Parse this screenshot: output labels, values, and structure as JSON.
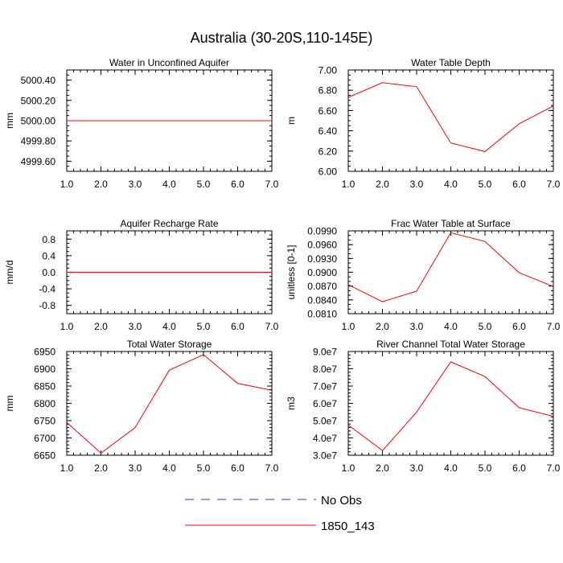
{
  "figure": {
    "title": "Australia (30-20S,110-145E)"
  },
  "legend": {
    "position": "bottom-center",
    "entries": [
      {
        "label": "No Obs",
        "color": "#3232c8",
        "style": "dashed"
      },
      {
        "label": "1850_143",
        "color": "#ff0000",
        "style": "solid"
      }
    ]
  },
  "chart_data": [
    {
      "type": "line",
      "title": "Water in Unconfined Aquifer",
      "ylabel": "mm",
      "xlabel": "",
      "xlim": [
        1,
        7
      ],
      "ylim": [
        4999.5,
        5000.5
      ],
      "xticks": [
        "1.0",
        "2.0",
        "3.0",
        "4.0",
        "5.0",
        "6.0",
        "7.0"
      ],
      "yticks": [
        {
          "v": 4999.6,
          "label": "4999.60"
        },
        {
          "v": 4999.8,
          "label": "4999.80"
        },
        {
          "v": 5000.0,
          "label": "5000.00"
        },
        {
          "v": 5000.2,
          "label": "5000.20"
        },
        {
          "v": 5000.4,
          "label": "5000.40"
        }
      ],
      "minor_y": 0.05,
      "series": [
        {
          "name": "1850_143",
          "color": "#ff0000",
          "x": [
            1,
            2,
            3,
            4,
            5,
            6,
            7
          ],
          "values": [
            5000,
            5000,
            5000,
            5000,
            5000,
            5000,
            5000
          ]
        }
      ]
    },
    {
      "type": "line",
      "title": "Water Table Depth",
      "ylabel": "m",
      "xlabel": "",
      "xlim": [
        1,
        7
      ],
      "ylim": [
        6.0,
        7.0
      ],
      "xticks": [
        "1.0",
        "2.0",
        "3.0",
        "4.0",
        "5.0",
        "6.0",
        "7.0"
      ],
      "yticks": [
        {
          "v": 6.0,
          "label": "6.00"
        },
        {
          "v": 6.2,
          "label": "6.20"
        },
        {
          "v": 6.4,
          "label": "6.40"
        },
        {
          "v": 6.6,
          "label": "6.60"
        },
        {
          "v": 6.8,
          "label": "6.80"
        },
        {
          "v": 7.0,
          "label": "7.00"
        }
      ],
      "minor_y": 0.05,
      "series": [
        {
          "name": "1850_143",
          "color": "#ff0000",
          "x": [
            1,
            2,
            3,
            4,
            5,
            6,
            7
          ],
          "values": [
            6.73,
            6.875,
            6.835,
            6.28,
            6.195,
            6.47,
            6.645
          ]
        }
      ]
    },
    {
      "type": "line",
      "title": "Aquifer Recharge Rate",
      "ylabel": "mm/d",
      "xlabel": "",
      "xlim": [
        1,
        7
      ],
      "ylim": [
        -1.0,
        1.0
      ],
      "xticks": [
        "1.0",
        "2.0",
        "3.0",
        "4.0",
        "5.0",
        "6.0",
        "7.0"
      ],
      "yticks": [
        {
          "v": -0.8,
          "label": "-0.8"
        },
        {
          "v": -0.4,
          "label": "-0.4"
        },
        {
          "v": 0.0,
          "label": "0.0"
        },
        {
          "v": 0.4,
          "label": "0.4"
        },
        {
          "v": 0.8,
          "label": "0.8"
        }
      ],
      "minor_y": 0.1,
      "series": [
        {
          "name": "1850_143",
          "color": "#ff0000",
          "x": [
            1,
            2,
            3,
            4,
            5,
            6,
            7
          ],
          "values": [
            0,
            0,
            0,
            0,
            0,
            0,
            0
          ]
        }
      ]
    },
    {
      "type": "line",
      "title": "Frac Water Table at Surface",
      "ylabel": "unitless [0-1]",
      "xlabel": "",
      "xlim": [
        1,
        7
      ],
      "ylim": [
        0.081,
        0.099
      ],
      "xticks": [
        "1.0",
        "2.0",
        "3.0",
        "4.0",
        "5.0",
        "6.0",
        "7.0"
      ],
      "yticks": [
        {
          "v": 0.081,
          "label": "0.0810"
        },
        {
          "v": 0.084,
          "label": "0.0840"
        },
        {
          "v": 0.087,
          "label": "0.0870"
        },
        {
          "v": 0.09,
          "label": "0.0900"
        },
        {
          "v": 0.093,
          "label": "0.0930"
        },
        {
          "v": 0.096,
          "label": "0.0960"
        },
        {
          "v": 0.099,
          "label": "0.0990"
        }
      ],
      "minor_y": 0.001,
      "series": [
        {
          "name": "1850_143",
          "color": "#ff0000",
          "x": [
            1,
            2,
            3,
            4,
            5,
            6,
            7
          ],
          "values": [
            0.0873,
            0.0836,
            0.0859,
            0.0986,
            0.0967,
            0.0899,
            0.0869
          ]
        }
      ]
    },
    {
      "type": "line",
      "title": "Total Water Storage",
      "ylabel": "mm",
      "xlabel": "",
      "xlim": [
        1,
        7
      ],
      "ylim": [
        6650,
        6950
      ],
      "xticks": [
        "1.0",
        "2.0",
        "3.0",
        "4.0",
        "5.0",
        "6.0",
        "7.0"
      ],
      "yticks": [
        {
          "v": 6650,
          "label": "6650"
        },
        {
          "v": 6700,
          "label": "6700"
        },
        {
          "v": 6750,
          "label": "6750"
        },
        {
          "v": 6800,
          "label": "6800"
        },
        {
          "v": 6850,
          "label": "6850"
        },
        {
          "v": 6900,
          "label": "6900"
        },
        {
          "v": 6950,
          "label": "6950"
        }
      ],
      "minor_y": 10,
      "series": [
        {
          "name": "1850_143",
          "color": "#ff0000",
          "x": [
            1,
            2,
            3,
            4,
            5,
            6,
            7
          ],
          "values": [
            6745,
            6656,
            6730,
            6896,
            6941,
            6858,
            6838
          ]
        }
      ]
    },
    {
      "type": "line",
      "title": "River Channel Total Water Storage",
      "ylabel": "m3",
      "xlabel": "",
      "xlim": [
        1,
        7
      ],
      "ylim": [
        30000000,
        90000000
      ],
      "xticks": [
        "1.0",
        "2.0",
        "3.0",
        "4.0",
        "5.0",
        "6.0",
        "7.0"
      ],
      "yticks": [
        {
          "v": 30000000,
          "label": "3.0e7"
        },
        {
          "v": 40000000,
          "label": "4.0e7"
        },
        {
          "v": 50000000,
          "label": "5.0e7"
        },
        {
          "v": 60000000,
          "label": "6.0e7"
        },
        {
          "v": 70000000,
          "label": "7.0e7"
        },
        {
          "v": 80000000,
          "label": "8.0e7"
        },
        {
          "v": 90000000,
          "label": "9.0e7"
        }
      ],
      "minor_y": 2000000,
      "series": [
        {
          "name": "1850_143",
          "color": "#ff0000",
          "x": [
            1,
            2,
            3,
            4,
            5,
            6,
            7
          ],
          "values": [
            47500000,
            32700000,
            55000000,
            84000000,
            75500000,
            57500000,
            52500000
          ]
        }
      ]
    }
  ]
}
